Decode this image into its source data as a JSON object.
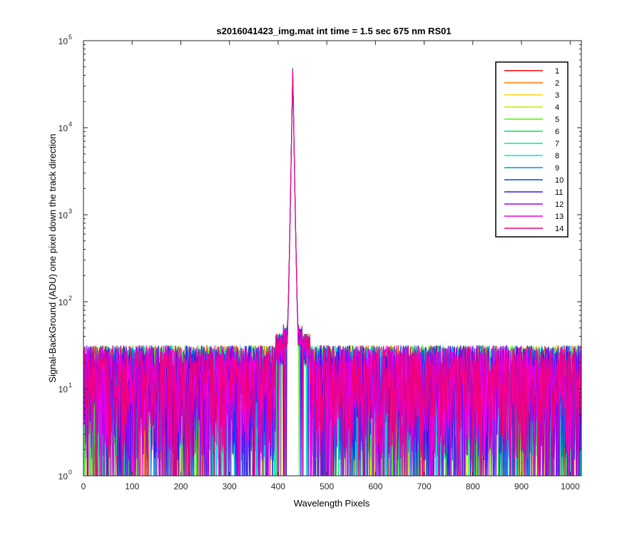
{
  "chart_data": {
    "type": "line",
    "title": "s2016041423_img.mat int time = 1.5 sec  675 nm RS01",
    "xlabel": "Wavelength Pixels",
    "ylabel": "Signal-BackGround (ADU) one pixel down the track direction",
    "xlim": [
      0,
      1023
    ],
    "ylim": [
      1,
      100000
    ],
    "yscale": "log",
    "xticks": [
      0,
      100,
      200,
      300,
      400,
      500,
      600,
      700,
      800,
      900,
      1000
    ],
    "yticks": [
      {
        "value": 1,
        "base": "10",
        "exp": "0"
      },
      {
        "value": 10,
        "base": "10",
        "exp": "1"
      },
      {
        "value": 100,
        "base": "10",
        "exp": "2"
      },
      {
        "value": 1000,
        "base": "10",
        "exp": "3"
      },
      {
        "value": 10000,
        "base": "10",
        "exp": "4"
      },
      {
        "value": 100000,
        "base": "10",
        "exp": "5"
      }
    ],
    "grid": false,
    "legend_position": "top-right",
    "peak": {
      "x": 430,
      "y": 48000
    },
    "noise_floor": {
      "min": 1,
      "max": 45,
      "typical": 12
    },
    "series": [
      {
        "name": "1",
        "color": "#ff0000"
      },
      {
        "name": "2",
        "color": "#ff7700"
      },
      {
        "name": "3",
        "color": "#ffd200"
      },
      {
        "name": "4",
        "color": "#b4f000"
      },
      {
        "name": "5",
        "color": "#50f000"
      },
      {
        "name": "6",
        "color": "#00e650"
      },
      {
        "name": "7",
        "color": "#00e6a0"
      },
      {
        "name": "8",
        "color": "#00e6e6"
      },
      {
        "name": "9",
        "color": "#0096f0"
      },
      {
        "name": "10",
        "color": "#0046f0"
      },
      {
        "name": "11",
        "color": "#3c14f0"
      },
      {
        "name": "12",
        "color": "#a000f0"
      },
      {
        "name": "13",
        "color": "#f000e6"
      },
      {
        "name": "14",
        "color": "#f0007d"
      }
    ]
  }
}
